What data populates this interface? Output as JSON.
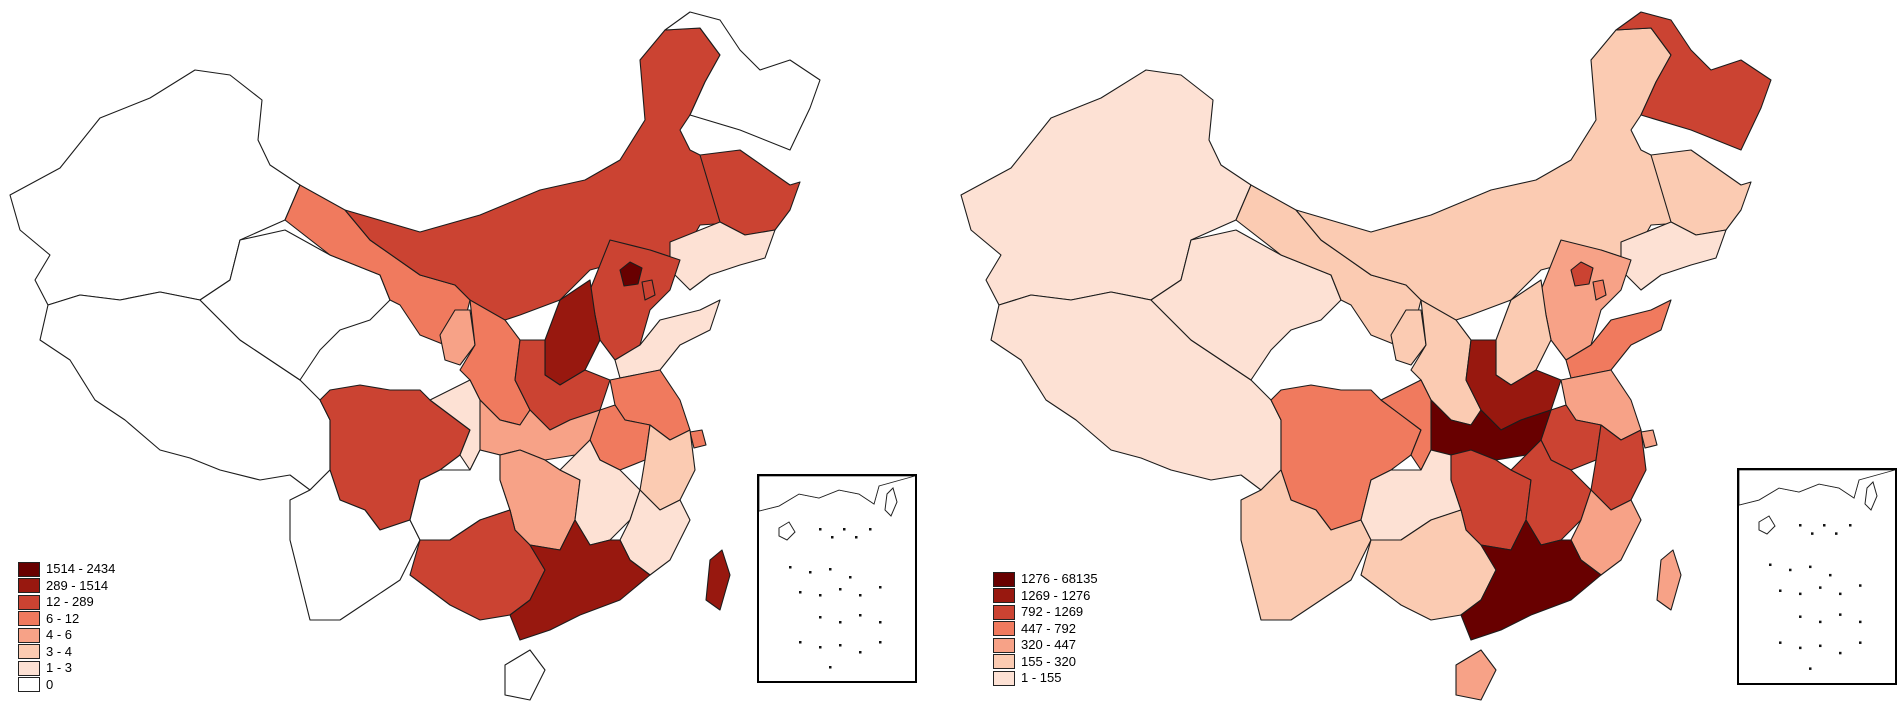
{
  "colors": {
    "c7": "#680000",
    "c6": "#98180f",
    "c5": "#cb4332",
    "c4": "#f07a5e",
    "c3": "#f7a287",
    "c2": "#fbcbb2",
    "c1": "#fde1d4",
    "c0": "#ffffff",
    "outline": "#1c1c1c"
  },
  "maps": [
    {
      "legend": [
        {
          "label": "1514 - 2434",
          "color": "#680000"
        },
        {
          "label": "289 - 1514",
          "color": "#98180f"
        },
        {
          "label": "12 - 289",
          "color": "#cb4332"
        },
        {
          "label": "6 - 12",
          "color": "#f07a5e"
        },
        {
          "label": "4 - 6",
          "color": "#f7a287"
        },
        {
          "label": "3 - 4",
          "color": "#fbcbb2"
        },
        {
          "label": "1 - 3",
          "color": "#fde1d4"
        },
        {
          "label": "0",
          "color": "#ffffff"
        }
      ],
      "regions": {
        "xinjiang": "c0",
        "tibet": "c0",
        "qinghai": "c0",
        "gansu": "c4",
        "inner_mongolia": "c5",
        "heilongjiang": "c0",
        "jilin": "c5",
        "liaoning": "c1",
        "beijing": "c7",
        "tianjin": "c5",
        "hebei": "c5",
        "shanxi": "c6",
        "shandong": "c1",
        "ningxia": "c3",
        "shaanxi": "c4",
        "henan": "c5",
        "jiangsu": "c4",
        "anhui": "c4",
        "shanghai": "c4",
        "sichuan": "c5",
        "chongqing": "c1",
        "hubei": "c3",
        "zhejiang": "c2",
        "yunnan": "c0",
        "guizhou": "c0",
        "hunan": "c3",
        "jiangxi": "c1",
        "fujian": "c1",
        "guangxi": "c5",
        "guangdong": "c6",
        "hainan": "c0",
        "taiwan": "c6"
      }
    },
    {
      "legend": [
        {
          "label": "1276 - 68135",
          "color": "#680000"
        },
        {
          "label": "1269 - 1276",
          "color": "#98180f"
        },
        {
          "label": "792 - 1269",
          "color": "#cb4332"
        },
        {
          "label": "447 - 792",
          "color": "#f07a5e"
        },
        {
          "label": "320 - 447",
          "color": "#f7a287"
        },
        {
          "label": "155 - 320",
          "color": "#fbcbb2"
        },
        {
          "label": "1 - 155",
          "color": "#fde1d4"
        }
      ],
      "regions": {
        "xinjiang": "c1",
        "tibet": "c1",
        "qinghai": "c1",
        "gansu": "c2",
        "inner_mongolia": "c2",
        "heilongjiang": "c5",
        "jilin": "c2",
        "liaoning": "c1",
        "beijing": "c5",
        "tianjin": "c4",
        "hebei": "c3",
        "shanxi": "c2",
        "shandong": "c4",
        "ningxia": "c2",
        "shaanxi": "c2",
        "henan": "c6",
        "jiangsu": "c3",
        "anhui": "c5",
        "shanghai": "c3",
        "sichuan": "c4",
        "chongqing": "c4",
        "hubei": "c7",
        "zhejiang": "c5",
        "yunnan": "c2",
        "guizhou": "c1",
        "hunan": "c5",
        "jiangxi": "c5",
        "fujian": "c3",
        "guangxi": "c2",
        "guangdong": "c7",
        "hainan": "c3",
        "taiwan": "c3"
      }
    }
  ]
}
